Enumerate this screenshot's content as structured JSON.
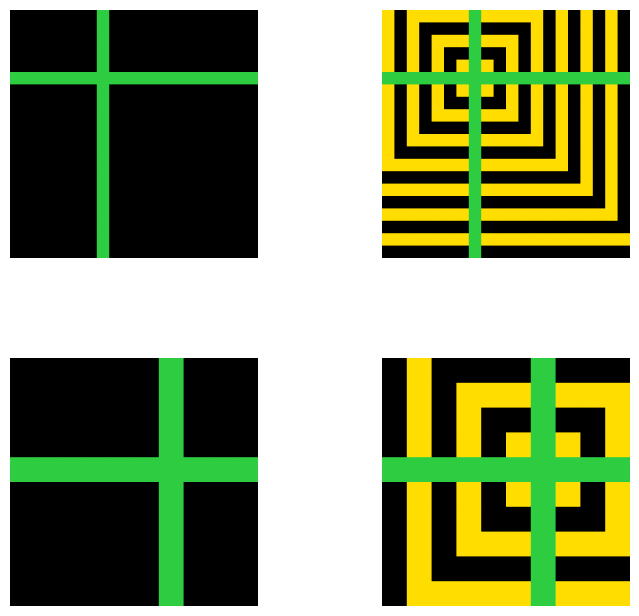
{
  "colors": {
    "black": "#000000",
    "yellow": "#ffdd00",
    "green": "#2ecc40",
    "background": "#ffffff"
  },
  "panels": [
    {
      "id": "top-left",
      "grid_size": 20,
      "pattern": "solid",
      "cross": {
        "row": 5,
        "col": 7
      }
    },
    {
      "id": "top-right",
      "grid_size": 20,
      "pattern": "concentric-squares",
      "pattern_center": {
        "row": 5,
        "col": 7
      },
      "cross": {
        "row": 5,
        "col": 7
      }
    },
    {
      "id": "bottom-left",
      "grid_size": 10,
      "pattern": "solid",
      "cross": {
        "row": 4,
        "col": 6
      }
    },
    {
      "id": "bottom-right",
      "grid_size": 10,
      "pattern": "concentric-squares",
      "pattern_center": {
        "row": 4,
        "col": 6
      },
      "cross": {
        "row": 4,
        "col": 6
      }
    }
  ]
}
